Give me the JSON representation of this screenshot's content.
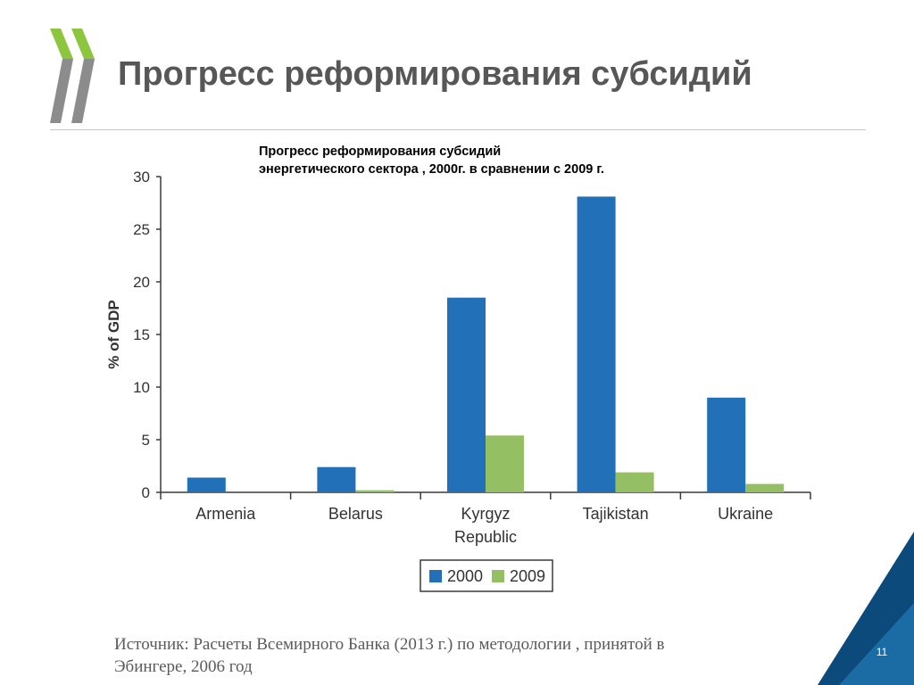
{
  "slide": {
    "title": "Прогресс реформирования субсидий",
    "caption_line1": "Прогресс реформирования субсидий",
    "caption_line2": "энергетического сектора , 2000г. в сравнении с 2009 г.",
    "source_line1": "Источник: Расчеты Всемирного Банка (2013 г.) по методологии , принятой в",
    "source_line2": "Эбингере, 2006 год",
    "page_number": "11",
    "logo_icon": "double-chevron-logo-icon"
  },
  "chart_data": {
    "type": "bar",
    "title": "",
    "xlabel": "",
    "ylabel": "% of GDP",
    "ylim": [
      0,
      30
    ],
    "yticks": [
      0,
      5,
      10,
      15,
      20,
      25,
      30
    ],
    "grid": false,
    "legend_position": "bottom",
    "categories": [
      {
        "lines": [
          "Armenia"
        ]
      },
      {
        "lines": [
          "Belarus"
        ]
      },
      {
        "lines": [
          "Kyrgyz",
          "Republic"
        ]
      },
      {
        "lines": [
          "Tajikistan"
        ]
      },
      {
        "lines": [
          "Ukraine"
        ]
      }
    ],
    "series": [
      {
        "name": "2000",
        "color": "#2170b8",
        "values": [
          1.4,
          2.4,
          18.5,
          28.1,
          9.0
        ]
      },
      {
        "name": "2009",
        "color": "#95bf63",
        "values": [
          0.0,
          0.2,
          5.4,
          1.9,
          0.8
        ]
      }
    ]
  },
  "colors": {
    "title_text": "#575757",
    "logo_green": "#8cc63f",
    "logo_gray": "#8c8c8c",
    "corner_dark_blue": "#0b4a7a",
    "corner_blue": "#2a86c7"
  }
}
